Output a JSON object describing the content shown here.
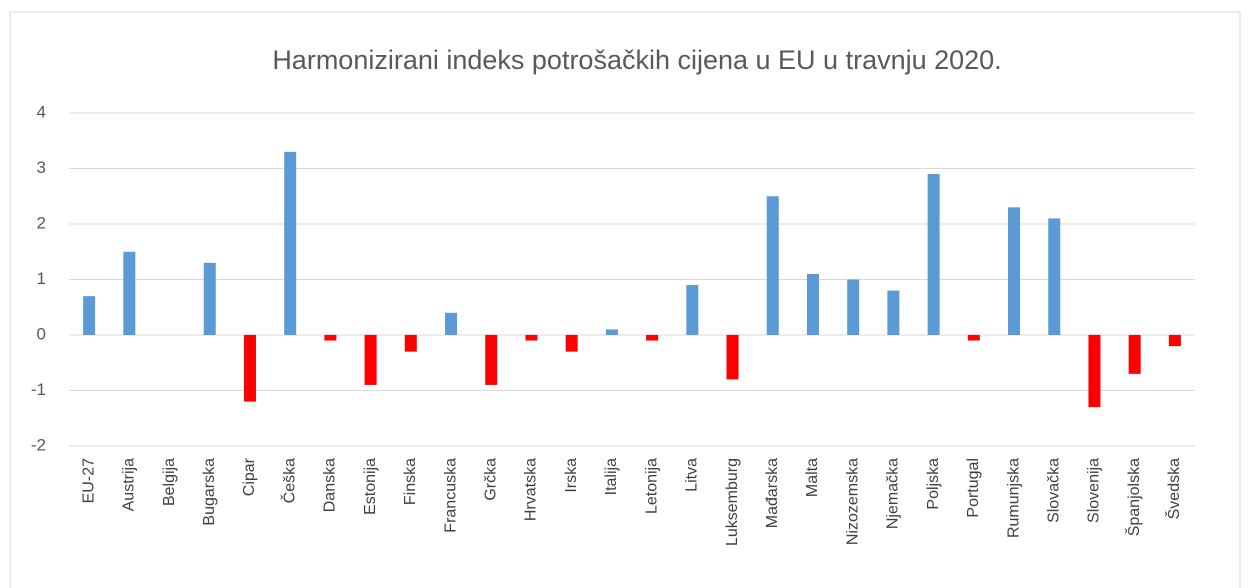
{
  "chart_data": {
    "type": "bar",
    "title": "Harmonizirani indeks potrošačkih cijena u EU u travnju 2020.",
    "categories": [
      "EU-27",
      "Austrija",
      "Belgija",
      "Bugarska",
      "Cipar",
      "Češka",
      "Danska",
      "Estonija",
      "Finska",
      "Francuska",
      "Grčka",
      "Hrvatska",
      "Irska",
      "Italija",
      "Letonija",
      "Litva",
      "Luksemburg",
      "Mađarska",
      "Malta",
      "Nizozemska",
      "Njemačka",
      "Poljska",
      "Portugal",
      "Rumunjska",
      "Slovačka",
      "Slovenija",
      "Španjolska",
      "Švedska"
    ],
    "values": [
      0.7,
      1.5,
      0,
      1.3,
      -1.2,
      3.3,
      -0.1,
      -0.9,
      -0.3,
      0.4,
      -0.9,
      -0.1,
      -0.3,
      0.1,
      -0.1,
      0.9,
      -0.8,
      2.5,
      1.1,
      1.0,
      0.8,
      2.9,
      -0.1,
      2.3,
      2.1,
      -1.3,
      -0.7,
      -0.2
    ],
    "positive_color": "#5b9bd5",
    "negative_color": "#ff0000",
    "ylim": [
      -2,
      4
    ],
    "yticks": [
      -2,
      -1,
      0,
      1,
      2,
      3,
      4
    ],
    "grid": true
  }
}
